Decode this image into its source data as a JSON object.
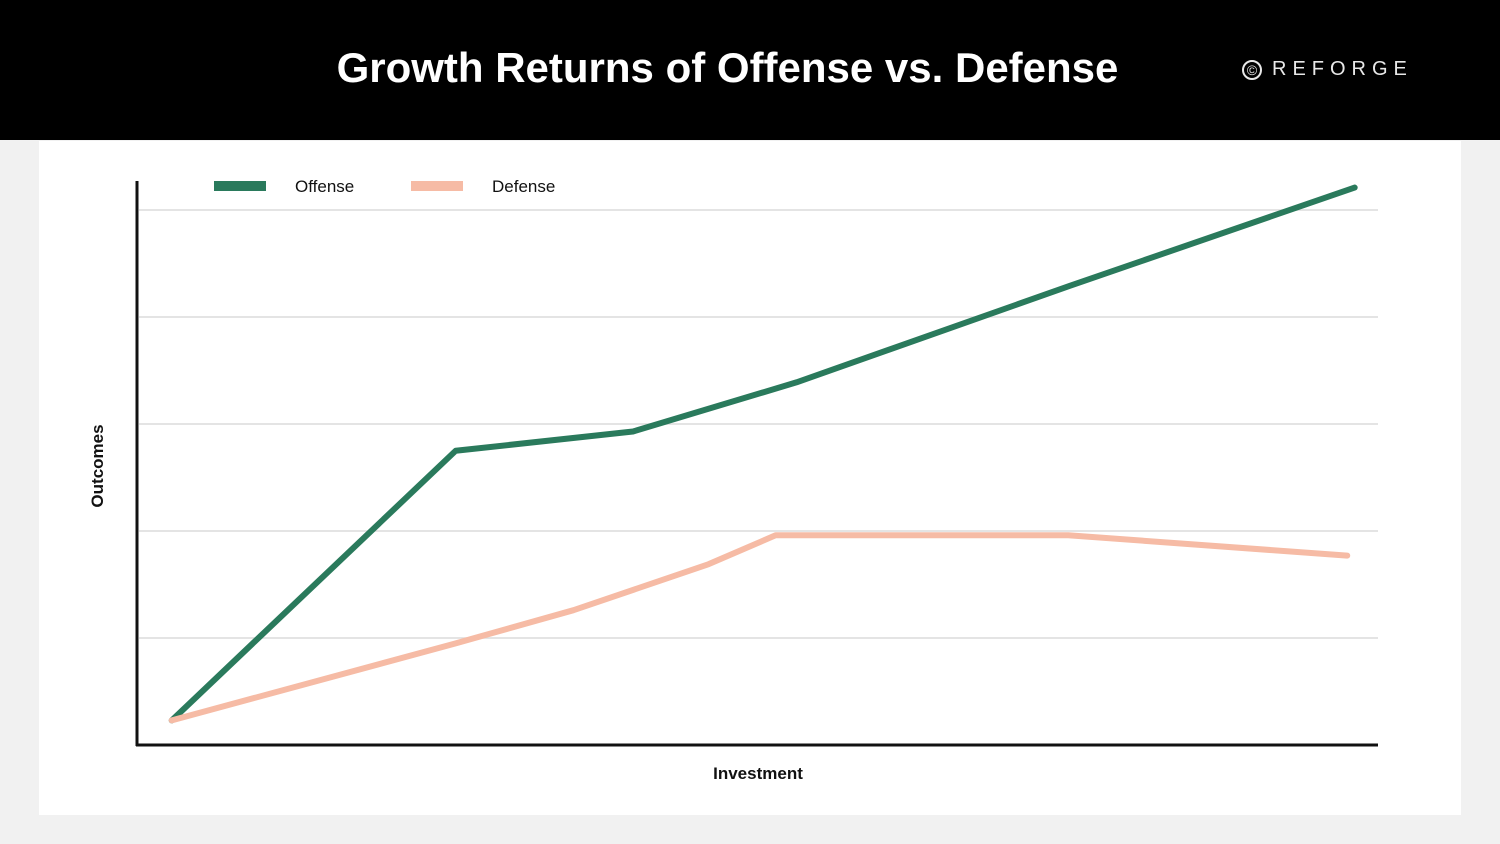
{
  "header": {
    "title": "Growth Returns of Offense vs. Defense",
    "logo_text": "REFORGE",
    "logo_mark": "©"
  },
  "chart_data": {
    "type": "line",
    "title": "Growth Returns of Offense vs. Defense",
    "xlabel": "Investment",
    "ylabel": "Outcomes",
    "xlim": [
      0,
      10
    ],
    "ylim": [
      0,
      5
    ],
    "grid": true,
    "tick_labels": false,
    "legend": "top-left",
    "series": [
      {
        "name": "Offense",
        "color": "#2a7a5c",
        "x": [
          0.28,
          2.57,
          4.0,
          5.32,
          7.52,
          9.82
        ],
        "y": [
          0.23,
          2.75,
          2.93,
          3.39,
          4.29,
          5.21
        ]
      },
      {
        "name": "Defense",
        "color": "#f6bba5",
        "x": [
          0.28,
          2.57,
          3.52,
          4.61,
          5.15,
          7.51,
          9.76
        ],
        "y": [
          0.23,
          0.95,
          1.26,
          1.69,
          1.96,
          1.96,
          1.77
        ]
      }
    ]
  }
}
